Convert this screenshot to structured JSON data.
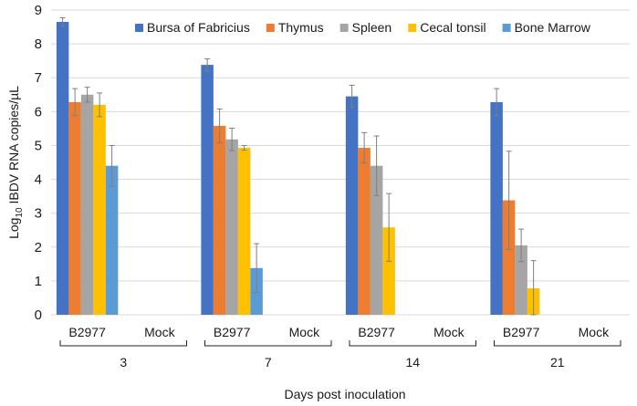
{
  "chart_data": {
    "type": "bar",
    "title": "",
    "xlabel": "Days post inoculation",
    "ylabel": "Log10 IBDV RNA copies/µL",
    "ylabel_base": "Log",
    "ylabel_sub": "10",
    "ylabel_rest": " IBDV RNA copies/µL",
    "ylim": [
      0,
      9
    ],
    "yticks": [
      "0",
      "1",
      "2",
      "3",
      "4",
      "5",
      "6",
      "7",
      "8",
      "9"
    ],
    "groups": [
      {
        "day": "3",
        "subgroups": [
          "B2977",
          "Mock"
        ]
      },
      {
        "day": "7",
        "subgroups": [
          "B2977",
          "Mock"
        ]
      },
      {
        "day": "14",
        "subgroups": [
          "B2977",
          "Mock"
        ]
      },
      {
        "day": "21",
        "subgroups": [
          "B2977",
          "Mock"
        ]
      }
    ],
    "legend_position": "top",
    "series": [
      {
        "name": "Bursa of Fabricius",
        "color": "#4472C4",
        "values": [
          8.65,
          0,
          7.38,
          0,
          6.45,
          0,
          6.28,
          0
        ],
        "errors": [
          0.12,
          0,
          0.18,
          0,
          0.33,
          0,
          0.4,
          0
        ]
      },
      {
        "name": "Thymus",
        "color": "#ED7D31",
        "values": [
          6.28,
          0,
          5.58,
          0,
          4.93,
          0,
          3.38,
          0
        ],
        "errors": [
          0.4,
          0,
          0.5,
          0,
          0.45,
          0,
          1.45,
          0
        ]
      },
      {
        "name": "Spleen",
        "color": "#A5A5A5",
        "values": [
          6.5,
          0,
          5.18,
          0,
          4.4,
          0,
          2.05,
          0
        ],
        "errors": [
          0.22,
          0,
          0.33,
          0,
          0.88,
          0,
          0.48,
          0
        ]
      },
      {
        "name": "Cecal tonsil",
        "color": "#FFC000",
        "values": [
          6.2,
          0,
          4.93,
          0,
          2.58,
          0,
          0.78,
          0
        ],
        "errors": [
          0.35,
          0,
          0.07,
          0,
          1.0,
          0,
          0.82,
          0
        ]
      },
      {
        "name": "Bone Marrow",
        "color": "#5B9BD5",
        "values": [
          4.4,
          0,
          1.38,
          0,
          0,
          0,
          0,
          0
        ],
        "errors": [
          0.6,
          0,
          0.72,
          0,
          0,
          0,
          0,
          0
        ]
      }
    ]
  }
}
